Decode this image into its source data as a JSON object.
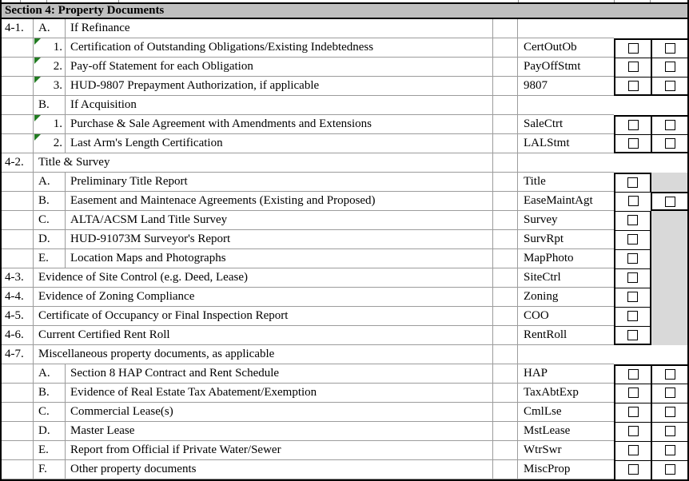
{
  "header": {
    "title": "Section 4: Property Documents"
  },
  "colors": {
    "header_bg": "#bfbfbf",
    "shaded_cell": "#d9d9d9",
    "gridline": "#9c9c9c",
    "border": "#000000",
    "comment_flag": "#217b21"
  },
  "icons": {
    "checkbox": "empty-checkbox-square",
    "comment_flag": "green-corner-triangle"
  },
  "columns": [
    "item",
    "sub-item",
    "description",
    "code",
    "check-1",
    "check-2"
  ],
  "rows": [
    {
      "num": "4-1.",
      "letter": "A.",
      "sub": false,
      "flag": false,
      "span": false,
      "desc": "If Refinance",
      "code": "",
      "chk1": "none",
      "chk2": "none"
    },
    {
      "num": "",
      "letter": "1.",
      "sub": true,
      "flag": true,
      "span": false,
      "desc": "Certification of Outstanding Obligations/Existing Indebtedness",
      "code": "CertOutOb",
      "chk1": "box",
      "chk2": "box"
    },
    {
      "num": "",
      "letter": "2.",
      "sub": true,
      "flag": true,
      "span": false,
      "desc": "Pay-off Statement for each Obligation",
      "code": "PayOffStmt",
      "chk1": "box",
      "chk2": "box"
    },
    {
      "num": "",
      "letter": "3.",
      "sub": true,
      "flag": true,
      "span": false,
      "desc": "HUD-9807 Prepayment Authorization, if applicable",
      "code": "9807",
      "chk1": "box",
      "chk2": "box"
    },
    {
      "num": "",
      "letter": "B.",
      "sub": false,
      "flag": false,
      "span": false,
      "desc": "If Acquisition",
      "code": "",
      "chk1": "none",
      "chk2": "none"
    },
    {
      "num": "",
      "letter": "1.",
      "sub": true,
      "flag": true,
      "span": false,
      "desc": "Purchase & Sale Agreement with Amendments and Extensions",
      "code": "SaleCtrt",
      "chk1": "box",
      "chk2": "box"
    },
    {
      "num": "",
      "letter": "2.",
      "sub": true,
      "flag": true,
      "span": false,
      "desc": "Last Arm's Length Certification",
      "code": "LALStmt",
      "chk1": "box",
      "chk2": "box"
    },
    {
      "num": "4-2.",
      "letter": "",
      "sub": false,
      "flag": false,
      "span": true,
      "desc": "Title & Survey",
      "code": "",
      "chk1": "none",
      "chk2": "none"
    },
    {
      "num": "",
      "letter": "A.",
      "sub": false,
      "flag": false,
      "span": false,
      "desc": "Preliminary Title Report",
      "code": "Title",
      "chk1": "box",
      "chk2": "gray"
    },
    {
      "num": "",
      "letter": "B.",
      "sub": false,
      "flag": false,
      "span": false,
      "desc": "Easement and Maintenace Agreements (Existing and Proposed)",
      "code": "EaseMaintAgt",
      "chk1": "box",
      "chk2": "box"
    },
    {
      "num": "",
      "letter": "C.",
      "sub": false,
      "flag": false,
      "span": false,
      "desc": "ALTA/ACSM Land Title Survey",
      "code": "Survey",
      "chk1": "box",
      "chk2": "gray"
    },
    {
      "num": "",
      "letter": "D.",
      "sub": false,
      "flag": false,
      "span": false,
      "desc": "HUD-91073M Surveyor's Report",
      "code": "SurvRpt",
      "chk1": "box",
      "chk2": "gray"
    },
    {
      "num": "",
      "letter": "E.",
      "sub": false,
      "flag": false,
      "span": false,
      "desc": "Location Maps and Photographs",
      "code": "MapPhoto",
      "chk1": "box",
      "chk2": "gray"
    },
    {
      "num": "4-3.",
      "letter": "",
      "sub": false,
      "flag": false,
      "span": true,
      "desc": "Evidence of Site Control (e.g. Deed, Lease)",
      "code": "SiteCtrl",
      "chk1": "box",
      "chk2": "gray"
    },
    {
      "num": "4-4.",
      "letter": "",
      "sub": false,
      "flag": false,
      "span": true,
      "desc": "Evidence of Zoning Compliance",
      "code": "Zoning",
      "chk1": "box",
      "chk2": "gray"
    },
    {
      "num": "4-5.",
      "letter": "",
      "sub": false,
      "flag": false,
      "span": true,
      "desc": "Certificate of Occupancy or Final Inspection Report",
      "code": "COO",
      "chk1": "box",
      "chk2": "gray"
    },
    {
      "num": "4-6.",
      "letter": "",
      "sub": false,
      "flag": false,
      "span": true,
      "desc": "Current Certified Rent Roll",
      "code": "RentRoll",
      "chk1": "box",
      "chk2": "gray"
    },
    {
      "num": "4-7.",
      "letter": "",
      "sub": false,
      "flag": false,
      "span": true,
      "desc": "Miscellaneous property documents, as applicable",
      "code": "",
      "chk1": "none",
      "chk2": "none"
    },
    {
      "num": "",
      "letter": "A.",
      "sub": false,
      "flag": false,
      "span": false,
      "desc": "Section 8 HAP Contract and Rent Schedule",
      "code": "HAP",
      "chk1": "box",
      "chk2": "box"
    },
    {
      "num": "",
      "letter": "B.",
      "sub": false,
      "flag": false,
      "span": false,
      "desc": "Evidence of Real Estate Tax Abatement/Exemption",
      "code": "TaxAbtExp",
      "chk1": "box",
      "chk2": "box"
    },
    {
      "num": "",
      "letter": "C.",
      "sub": false,
      "flag": false,
      "span": false,
      "desc": "Commercial Lease(s)",
      "code": "CmlLse",
      "chk1": "box",
      "chk2": "box"
    },
    {
      "num": "",
      "letter": "D.",
      "sub": false,
      "flag": false,
      "span": false,
      "desc": "Master Lease",
      "code": "MstLease",
      "chk1": "box",
      "chk2": "box"
    },
    {
      "num": "",
      "letter": "E.",
      "sub": false,
      "flag": false,
      "span": false,
      "desc": "Report from Official if Private Water/Sewer",
      "code": "WtrSwr",
      "chk1": "box",
      "chk2": "box"
    },
    {
      "num": "",
      "letter": "F.",
      "sub": false,
      "flag": false,
      "span": false,
      "desc": "Other property documents",
      "code": "MiscProp",
      "chk1": "box",
      "chk2": "box"
    }
  ]
}
